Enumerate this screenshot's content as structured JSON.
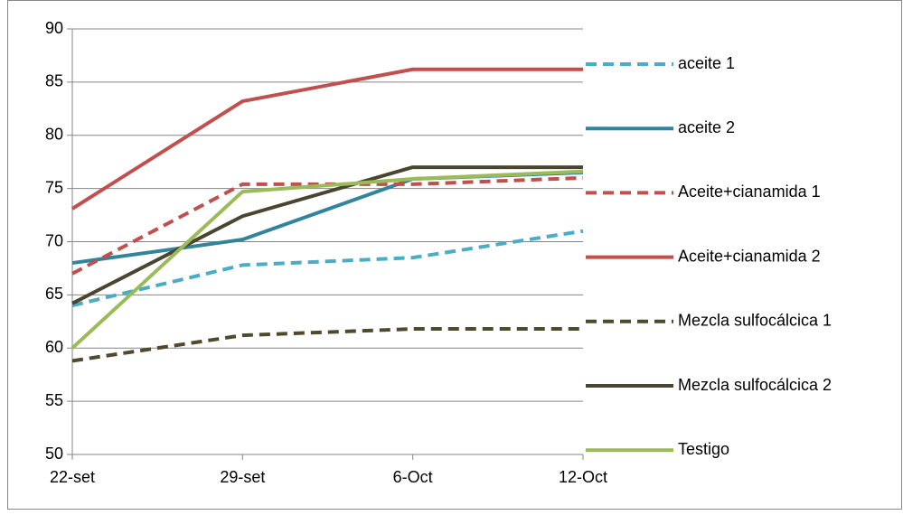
{
  "chart_data": {
    "type": "line",
    "categories": [
      "22-set",
      "29-set",
      "6-Oct",
      "12-Oct"
    ],
    "series": [
      {
        "name": "aceite 1",
        "color": "#4bacc6",
        "dash": true,
        "values": [
          64.0,
          67.8,
          68.5,
          71.0
        ]
      },
      {
        "name": "aceite 2",
        "color": "#31849b",
        "dash": false,
        "values": [
          68.0,
          70.2,
          75.9,
          76.5
        ]
      },
      {
        "name": "Aceite+cianamida 1",
        "color": "#c0504d",
        "dash": true,
        "values": [
          67.0,
          75.4,
          75.4,
          76.0
        ]
      },
      {
        "name": "Aceite+cianamida 2",
        "color": "#c0504d",
        "dash": false,
        "values": [
          73.1,
          83.2,
          86.2,
          86.2
        ]
      },
      {
        "name": "Mezcla sulfocálcica 1",
        "color": "#4f4a2e",
        "dash": true,
        "values": [
          58.8,
          61.2,
          61.8,
          61.8
        ]
      },
      {
        "name": "Mezcla sulfocálcica 2",
        "color": "#4a4530",
        "dash": false,
        "values": [
          64.2,
          72.4,
          77.0,
          77.0
        ]
      },
      {
        "name": "Testigo",
        "color": "#9bbb59",
        "dash": false,
        "values": [
          60.0,
          74.7,
          75.9,
          76.6
        ]
      }
    ],
    "ylim": [
      50,
      90
    ],
    "yticks": [
      50,
      55,
      60,
      65,
      70,
      75,
      80,
      85,
      90
    ],
    "grid": true,
    "legend": "right"
  }
}
